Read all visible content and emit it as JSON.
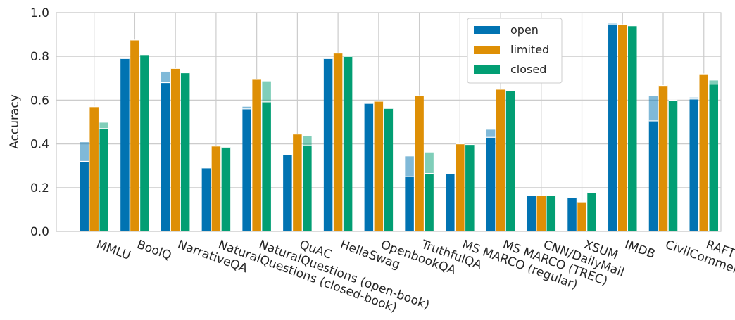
{
  "chart_data": {
    "type": "bar",
    "ylabel": "Accuracy",
    "xlabel": "",
    "ylim": [
      0,
      1.0
    ],
    "yticks": [
      "0.0",
      "0.2",
      "0.4",
      "0.6",
      "0.8",
      "1.0"
    ],
    "grid": true,
    "legend_position": "top-right",
    "categories": [
      "MMLU",
      "BoolQ",
      "NarrativeQA",
      "NaturalQuestions (closed-book)",
      "NaturalQuestions (open-book)",
      "QuAC",
      "HellaSwag",
      "OpenbookQA",
      "TruthfulQA",
      "MS MARCO (regular)",
      "MS MARCO (TREC)",
      "CNN/DailyMail",
      "XSUM",
      "IMDB",
      "CivilComments",
      "RAFT"
    ],
    "series": [
      {
        "name": "open",
        "color": "#0173b2",
        "values": [
          0.32,
          0.79,
          0.68,
          0.29,
          0.56,
          0.35,
          0.79,
          0.585,
          0.25,
          0.265,
          0.43,
          0.165,
          0.155,
          0.945,
          0.505,
          0.605
        ],
        "upper_values": [
          0.408,
          0.79,
          0.73,
          0.29,
          0.57,
          0.35,
          0.79,
          0.585,
          0.343,
          0.265,
          0.465,
          0.165,
          0.155,
          0.95,
          0.62,
          0.612
        ]
      },
      {
        "name": "limited",
        "color": "#de8f05",
        "values": [
          0.57,
          0.875,
          0.745,
          0.39,
          0.695,
          0.445,
          0.815,
          0.595,
          0.62,
          0.4,
          0.65,
          0.163,
          0.135,
          0.945,
          0.667,
          0.72
        ],
        "upper_values": [
          0.57,
          0.875,
          0.745,
          0.39,
          0.695,
          0.445,
          0.815,
          0.595,
          0.62,
          0.4,
          0.65,
          0.163,
          0.135,
          0.945,
          0.667,
          0.72
        ]
      },
      {
        "name": "closed",
        "color": "#029e73",
        "values": [
          0.47,
          0.808,
          0.725,
          0.385,
          0.592,
          0.392,
          0.8,
          0.562,
          0.265,
          0.397,
          0.645,
          0.165,
          0.178,
          0.94,
          0.6,
          0.673
        ],
        "upper_values": [
          0.497,
          0.808,
          0.725,
          0.385,
          0.686,
          0.435,
          0.8,
          0.562,
          0.361,
          0.397,
          0.645,
          0.165,
          0.178,
          0.94,
          0.6,
          0.69
        ]
      }
    ]
  }
}
